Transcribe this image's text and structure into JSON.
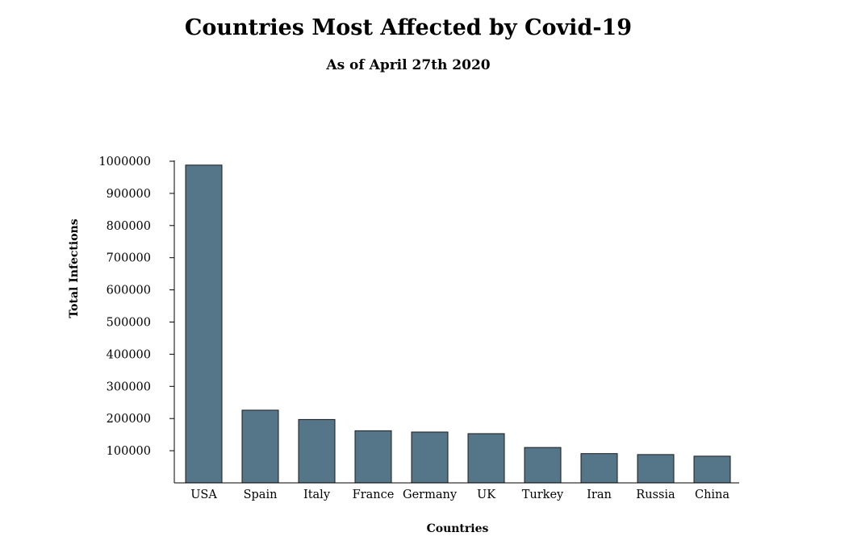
{
  "chart_data": {
    "type": "bar",
    "title": "Countries Most Affected by Covid-19",
    "subtitle": "As of April 27th 2020",
    "xlabel": "Countries",
    "ylabel": "Total Infections",
    "categories": [
      "USA",
      "Spain",
      "Italy",
      "France",
      "Germany",
      "UK",
      "Turkey",
      "Iran",
      "Russia",
      "China"
    ],
    "values": [
      988000,
      226000,
      197000,
      162000,
      158000,
      153000,
      110000,
      91000,
      88000,
      83000
    ],
    "yticks": [
      100000,
      200000,
      300000,
      400000,
      500000,
      600000,
      700000,
      800000,
      900000,
      1000000
    ],
    "ylim": [
      0,
      1000000
    ],
    "grid": false,
    "legend": "none",
    "bar_color": "#557589"
  }
}
